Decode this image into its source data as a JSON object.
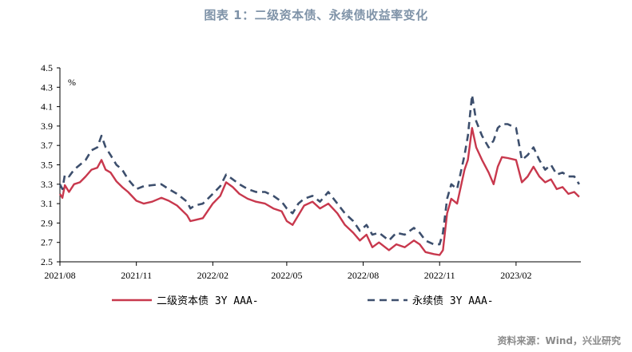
{
  "title": "图表 1：二级资本债、永续债收益率变化",
  "source": "资料来源：Wind，兴业研究",
  "chart_data": {
    "type": "line",
    "title": "图表 1：二级资本债、永续债收益率变化",
    "unit_label": "%",
    "ylim": [
      2.5,
      4.5
    ],
    "yticks": [
      "2.5",
      "2.7",
      "2.9",
      "3.1",
      "3.3",
      "3.5",
      "3.7",
      "3.9",
      "4.1",
      "4.3",
      "4.5"
    ],
    "xlim": [
      "2021-08-01",
      "2023-04-20"
    ],
    "xticks": [
      {
        "label": "2021/08",
        "date": "2021-08-01"
      },
      {
        "label": "2021/11",
        "date": "2021-11-01"
      },
      {
        "label": "2022/02",
        "date": "2022-02-01"
      },
      {
        "label": "2022/05",
        "date": "2022-05-01"
      },
      {
        "label": "2022/08",
        "date": "2022-08-01"
      },
      {
        "label": "2022/11",
        "date": "2022-11-01"
      },
      {
        "label": "2023/02",
        "date": "2023-02-01"
      }
    ],
    "grid": false,
    "legend_position": "bottom",
    "series": [
      {
        "name": "二级资本债 3Y AAA-",
        "color": "#c8384d",
        "style": "solid",
        "points": [
          [
            "2021-08-01",
            3.2
          ],
          [
            "2021-08-04",
            3.16
          ],
          [
            "2021-08-07",
            3.29
          ],
          [
            "2021-08-12",
            3.22
          ],
          [
            "2021-08-18",
            3.3
          ],
          [
            "2021-08-25",
            3.32
          ],
          [
            "2021-09-01",
            3.38
          ],
          [
            "2021-09-08",
            3.45
          ],
          [
            "2021-09-15",
            3.47
          ],
          [
            "2021-09-20",
            3.55
          ],
          [
            "2021-09-25",
            3.45
          ],
          [
            "2021-10-01",
            3.42
          ],
          [
            "2021-10-08",
            3.33
          ],
          [
            "2021-10-15",
            3.27
          ],
          [
            "2021-10-22",
            3.22
          ],
          [
            "2021-11-01",
            3.13
          ],
          [
            "2021-11-10",
            3.1
          ],
          [
            "2021-11-20",
            3.12
          ],
          [
            "2021-12-01",
            3.16
          ],
          [
            "2021-12-10",
            3.13
          ],
          [
            "2021-12-20",
            3.08
          ],
          [
            "2022-01-01",
            2.98
          ],
          [
            "2022-01-05",
            2.92
          ],
          [
            "2022-01-10",
            2.93
          ],
          [
            "2022-01-20",
            2.95
          ],
          [
            "2022-02-01",
            3.1
          ],
          [
            "2022-02-10",
            3.18
          ],
          [
            "2022-02-17",
            3.32
          ],
          [
            "2022-02-25",
            3.27
          ],
          [
            "2022-03-05",
            3.2
          ],
          [
            "2022-03-15",
            3.15
          ],
          [
            "2022-03-25",
            3.12
          ],
          [
            "2022-04-05",
            3.1
          ],
          [
            "2022-04-15",
            3.05
          ],
          [
            "2022-04-25",
            3.02
          ],
          [
            "2022-05-01",
            2.92
          ],
          [
            "2022-05-08",
            2.88
          ],
          [
            "2022-05-15",
            2.98
          ],
          [
            "2022-05-22",
            3.08
          ],
          [
            "2022-06-01",
            3.12
          ],
          [
            "2022-06-10",
            3.05
          ],
          [
            "2022-06-20",
            3.1
          ],
          [
            "2022-07-01",
            3.0
          ],
          [
            "2022-07-10",
            2.88
          ],
          [
            "2022-07-20",
            2.8
          ],
          [
            "2022-07-28",
            2.72
          ],
          [
            "2022-08-05",
            2.78
          ],
          [
            "2022-08-12",
            2.65
          ],
          [
            "2022-08-20",
            2.7
          ],
          [
            "2022-09-01",
            2.62
          ],
          [
            "2022-09-10",
            2.68
          ],
          [
            "2022-09-20",
            2.65
          ],
          [
            "2022-10-01",
            2.72
          ],
          [
            "2022-10-08",
            2.68
          ],
          [
            "2022-10-15",
            2.6
          ],
          [
            "2022-10-25",
            2.58
          ],
          [
            "2022-11-01",
            2.57
          ],
          [
            "2022-11-05",
            2.62
          ],
          [
            "2022-11-10",
            3.0
          ],
          [
            "2022-11-15",
            3.15
          ],
          [
            "2022-11-22",
            3.1
          ],
          [
            "2022-12-01",
            3.45
          ],
          [
            "2022-12-05",
            3.55
          ],
          [
            "2022-12-10",
            3.88
          ],
          [
            "2022-12-15",
            3.68
          ],
          [
            "2022-12-22",
            3.55
          ],
          [
            "2022-12-30",
            3.42
          ],
          [
            "2023-01-05",
            3.3
          ],
          [
            "2023-01-10",
            3.48
          ],
          [
            "2023-01-15",
            3.58
          ],
          [
            "2023-01-22",
            3.57
          ],
          [
            "2023-02-01",
            3.55
          ],
          [
            "2023-02-08",
            3.32
          ],
          [
            "2023-02-15",
            3.38
          ],
          [
            "2023-02-22",
            3.48
          ],
          [
            "2023-03-01",
            3.38
          ],
          [
            "2023-03-08",
            3.32
          ],
          [
            "2023-03-15",
            3.35
          ],
          [
            "2023-03-22",
            3.25
          ],
          [
            "2023-03-29",
            3.27
          ],
          [
            "2023-04-05",
            3.2
          ],
          [
            "2023-04-12",
            3.22
          ],
          [
            "2023-04-18",
            3.17
          ]
        ]
      },
      {
        "name": "永续债 3Y AAA-",
        "color": "#3d4f6d",
        "style": "dashed",
        "points": [
          [
            "2021-08-01",
            3.3
          ],
          [
            "2021-08-04",
            3.25
          ],
          [
            "2021-08-07",
            3.4
          ],
          [
            "2021-08-12",
            3.38
          ],
          [
            "2021-08-18",
            3.45
          ],
          [
            "2021-08-25",
            3.5
          ],
          [
            "2021-09-01",
            3.55
          ],
          [
            "2021-09-08",
            3.65
          ],
          [
            "2021-09-15",
            3.68
          ],
          [
            "2021-09-20",
            3.8
          ],
          [
            "2021-09-25",
            3.68
          ],
          [
            "2021-10-01",
            3.6
          ],
          [
            "2021-10-08",
            3.5
          ],
          [
            "2021-10-15",
            3.45
          ],
          [
            "2021-10-22",
            3.35
          ],
          [
            "2021-11-01",
            3.25
          ],
          [
            "2021-11-10",
            3.28
          ],
          [
            "2021-11-20",
            3.29
          ],
          [
            "2021-12-01",
            3.3
          ],
          [
            "2021-12-10",
            3.25
          ],
          [
            "2021-12-20",
            3.2
          ],
          [
            "2022-01-01",
            3.12
          ],
          [
            "2022-01-05",
            3.05
          ],
          [
            "2022-01-10",
            3.08
          ],
          [
            "2022-01-20",
            3.1
          ],
          [
            "2022-02-01",
            3.2
          ],
          [
            "2022-02-10",
            3.28
          ],
          [
            "2022-02-17",
            3.4
          ],
          [
            "2022-02-25",
            3.35
          ],
          [
            "2022-03-05",
            3.3
          ],
          [
            "2022-03-15",
            3.25
          ],
          [
            "2022-03-25",
            3.22
          ],
          [
            "2022-04-05",
            3.22
          ],
          [
            "2022-04-15",
            3.18
          ],
          [
            "2022-04-25",
            3.12
          ],
          [
            "2022-05-01",
            3.05
          ],
          [
            "2022-05-08",
            3.0
          ],
          [
            "2022-05-15",
            3.1
          ],
          [
            "2022-05-22",
            3.15
          ],
          [
            "2022-06-01",
            3.18
          ],
          [
            "2022-06-10",
            3.12
          ],
          [
            "2022-06-20",
            3.22
          ],
          [
            "2022-07-01",
            3.1
          ],
          [
            "2022-07-10",
            3.0
          ],
          [
            "2022-07-20",
            2.92
          ],
          [
            "2022-07-28",
            2.82
          ],
          [
            "2022-08-05",
            2.88
          ],
          [
            "2022-08-12",
            2.78
          ],
          [
            "2022-08-20",
            2.8
          ],
          [
            "2022-09-01",
            2.72
          ],
          [
            "2022-09-10",
            2.8
          ],
          [
            "2022-09-20",
            2.78
          ],
          [
            "2022-10-01",
            2.85
          ],
          [
            "2022-10-08",
            2.8
          ],
          [
            "2022-10-15",
            2.72
          ],
          [
            "2022-10-25",
            2.68
          ],
          [
            "2022-11-01",
            2.68
          ],
          [
            "2022-11-05",
            2.8
          ],
          [
            "2022-11-10",
            3.15
          ],
          [
            "2022-11-15",
            3.3
          ],
          [
            "2022-11-22",
            3.25
          ],
          [
            "2022-12-01",
            3.6
          ],
          [
            "2022-12-05",
            3.8
          ],
          [
            "2022-12-10",
            4.22
          ],
          [
            "2022-12-15",
            3.95
          ],
          [
            "2022-12-22",
            3.8
          ],
          [
            "2022-12-30",
            3.68
          ],
          [
            "2023-01-05",
            3.75
          ],
          [
            "2023-01-10",
            3.88
          ],
          [
            "2023-01-15",
            3.92
          ],
          [
            "2023-01-22",
            3.92
          ],
          [
            "2023-02-01",
            3.88
          ],
          [
            "2023-02-08",
            3.55
          ],
          [
            "2023-02-15",
            3.6
          ],
          [
            "2023-02-22",
            3.68
          ],
          [
            "2023-03-01",
            3.55
          ],
          [
            "2023-03-08",
            3.45
          ],
          [
            "2023-03-15",
            3.5
          ],
          [
            "2023-03-22",
            3.4
          ],
          [
            "2023-03-29",
            3.42
          ],
          [
            "2023-04-05",
            3.38
          ],
          [
            "2023-04-12",
            3.38
          ],
          [
            "2023-04-18",
            3.3
          ]
        ]
      }
    ]
  }
}
